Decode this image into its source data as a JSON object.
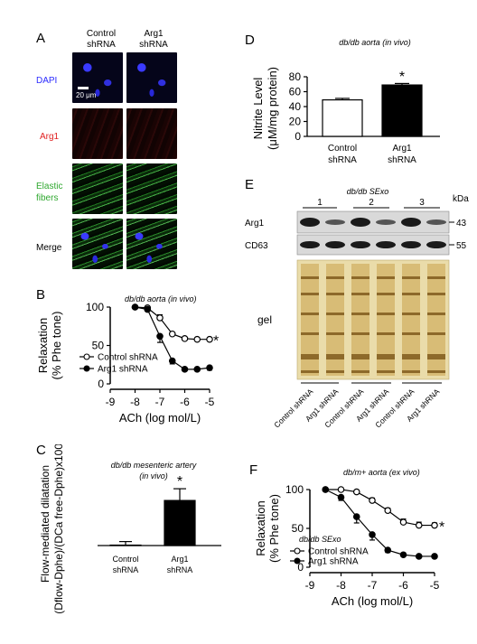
{
  "panelA": {
    "label": "A",
    "col_headers": [
      "Control\nshRNA",
      "Arg1\nshRNA"
    ],
    "row_labels": [
      "DAPI",
      "Arg1",
      "Elastic\nfibers",
      "Merge"
    ],
    "row_label_colors": [
      "#2b2bff",
      "#e02020",
      "#2fa82f",
      "#000000"
    ],
    "scale_bar": "20 μm"
  },
  "panelB": {
    "label": "B",
    "chart_data": {
      "type": "line",
      "title": "db/db aorta (in vivo)",
      "xlabel": "ACh (log mol/L)",
      "ylabel": "Relaxation\n(% Phe tone)",
      "xlim": [
        -9,
        -5
      ],
      "ylim": [
        0,
        100
      ],
      "xticks": [
        "-9",
        "-8",
        "-7",
        "-6",
        "-5"
      ],
      "yticks": [
        "0",
        "50",
        "100"
      ],
      "series": [
        {
          "name": "Control shRNA",
          "marker": "open-circle",
          "x": [
            -8,
            -7.5,
            -7,
            -6.5,
            -6,
            -5.5,
            -5
          ],
          "y": [
            100,
            99,
            86,
            65,
            59,
            58,
            58
          ],
          "err": [
            0,
            1,
            4,
            2,
            1,
            2,
            2
          ]
        },
        {
          "name": "Arg1 shRNA",
          "marker": "filled-circle",
          "x": [
            -8,
            -7.5,
            -7,
            -6.5,
            -6,
            -5.5,
            -5
          ],
          "y": [
            100,
            97,
            62,
            30,
            19,
            19,
            21
          ],
          "err": [
            0,
            2,
            8,
            4,
            2,
            2,
            3
          ]
        }
      ],
      "annotation": "*",
      "legend": "bottom-left"
    }
  },
  "panelC": {
    "label": "C",
    "chart_data": {
      "type": "bar",
      "title": "db/db mesenteric artery\n(in vivo)",
      "ylabel": "Flow-mediated dilatation\n(Dflow-Dphe)/(DCa free-Dphe)x100%",
      "categories": [
        "Control\nshRNA",
        "Arg1\nshRNA"
      ],
      "values": [
        5,
        43
      ],
      "err": [
        3,
        10
      ],
      "fill": [
        "#ffffff",
        "#000000"
      ],
      "annotation": "*"
    }
  },
  "panelD": {
    "label": "D",
    "chart_data": {
      "type": "bar",
      "title": "db/db aorta (in vivo)",
      "ylabel": "Nitrite Level\n(μM/mg protein)",
      "categories": [
        "Control\nshRNA",
        "Arg1\nshRNA"
      ],
      "values": [
        49,
        69
      ],
      "err": [
        2,
        2
      ],
      "ylim": [
        0,
        80
      ],
      "yticks": [
        "0",
        "20",
        "40",
        "60",
        "80"
      ],
      "fill": [
        "#ffffff",
        "#000000"
      ],
      "annotation": "*"
    }
  },
  "panelE": {
    "label": "E",
    "title": "db/db SExo",
    "groups": [
      "1",
      "2",
      "3"
    ],
    "kda_label": "kDa",
    "bands": [
      {
        "name": "Arg1",
        "kda": "43"
      },
      {
        "name": "CD63",
        "kda": "55"
      }
    ],
    "gel_label": "gel",
    "lane_labels": [
      "Control shRNA",
      "Arg1 shRNA",
      "Control shRNA",
      "Arg1 shRNA",
      "Control shRNA",
      "Arg1 shRNA"
    ]
  },
  "panelF": {
    "label": "F",
    "chart_data": {
      "type": "line",
      "title": "db/m+ aorta (ex vivo)",
      "xlabel": "ACh (log mol/L)",
      "ylabel": "Relaxation\n(% Phe tone)",
      "xlim": [
        -9,
        -5
      ],
      "ylim": [
        0,
        100
      ],
      "xticks": [
        "-9",
        "-8",
        "-7",
        "-6",
        "-5"
      ],
      "yticks": [
        "0",
        "50",
        "100"
      ],
      "series": [
        {
          "name": "db/db SExo Control shRNA",
          "marker": "open-circle",
          "x": [
            -8.5,
            -8,
            -7.5,
            -7,
            -6.5,
            -6,
            -5.5,
            -5
          ],
          "y": [
            100,
            100,
            97,
            86,
            73,
            58,
            54,
            54
          ],
          "err": [
            0,
            1,
            2,
            3,
            3,
            4,
            4,
            3
          ]
        },
        {
          "name": "db/db SExo Arg1 shRNA",
          "marker": "filled-circle",
          "x": [
            -8.5,
            -8,
            -7.5,
            -7,
            -6.5,
            -6,
            -5.5,
            -5
          ],
          "y": [
            100,
            90,
            65,
            42,
            22,
            16,
            14,
            14
          ],
          "err": [
            0,
            4,
            8,
            7,
            3,
            2,
            2,
            2
          ]
        }
      ],
      "legend_title": "db/db SExo",
      "legend_entries": [
        "Control shRNA",
        "Arg1 shRNA"
      ],
      "annotation": "*",
      "legend": "bottom-left"
    }
  }
}
